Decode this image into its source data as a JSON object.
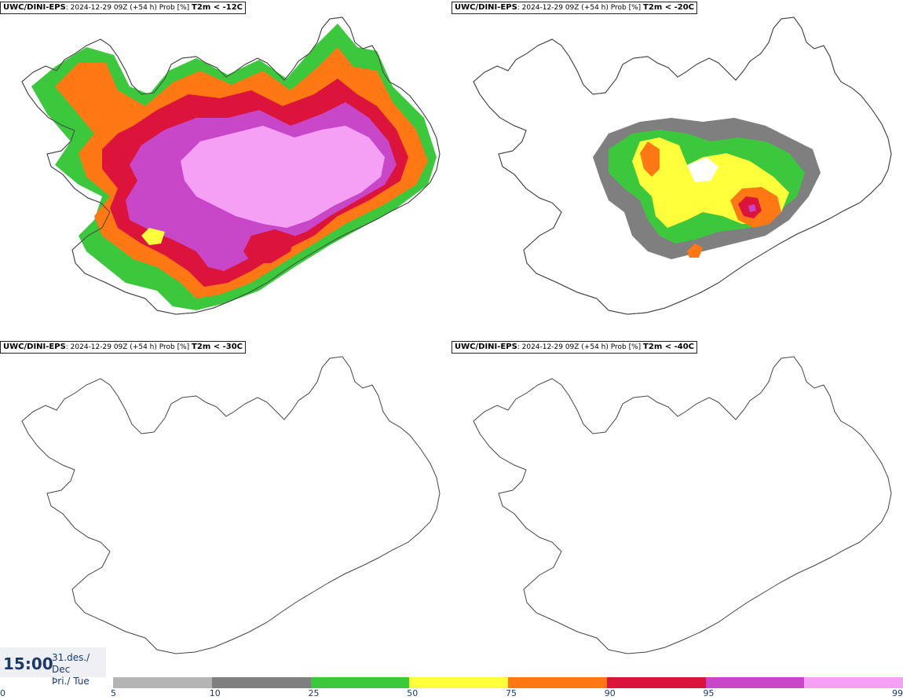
{
  "panels": [
    {
      "model": "UWC/DINI-EPS",
      "info": ": 2024-12-29 09Z (+54 h) Prob [%]",
      "variable": "T2m < -12C"
    },
    {
      "model": "UWC/DINI-EPS",
      "info": ": 2024-12-29 09Z (+54 h) Prob [%]",
      "variable": "T2m < -20C"
    },
    {
      "model": "UWC/DINI-EPS",
      "info": ": 2024-12-29 09Z (+54 h) Prob [%]",
      "variable": "T2m < -30C"
    },
    {
      "model": "UWC/DINI-EPS",
      "info": ": 2024-12-29 09Z (+54 h) Prob [%]",
      "variable": "T2m < -40C"
    }
  ],
  "timebox": {
    "time": "15:00",
    "date_line1": "31.des./ Dec",
    "date_line2": "Þri./ Tue"
  },
  "legend": {
    "ticks": [
      "0",
      "5",
      "10",
      "25",
      "50",
      "75",
      "90",
      "95",
      "99"
    ],
    "colors": [
      "#b4b4b4",
      "#7f7f7f",
      "#3cc83c",
      "#ffff3c",
      "#ff7814",
      "#dc143c",
      "#c846c8",
      "#f5a0f5"
    ]
  }
}
